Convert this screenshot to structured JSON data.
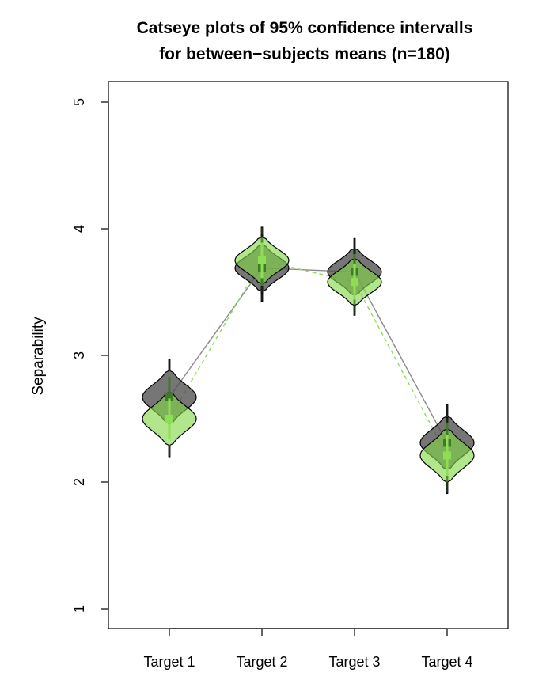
{
  "chart_data": {
    "type": "catseye",
    "title": [
      "Catseye plots of 95% confidence intervalls",
      "for between−subjects means (n=180)"
    ],
    "xlabel": "",
    "ylabel": "Separability",
    "categories": [
      "Target 1",
      "Target 2",
      "Target 3",
      "Target 4"
    ],
    "ylim": [
      1,
      5
    ],
    "yticks": [
      "1",
      "2",
      "3",
      "4",
      "5"
    ],
    "grid": false,
    "legend": "none",
    "series": [
      {
        "color": "#555555",
        "line_style": "solid",
        "means": [
          2.67,
          3.69,
          3.66,
          2.31
        ],
        "ci_half_width": [
          0.16,
          0.14,
          0.14,
          0.16
        ]
      },
      {
        "color": "#8ede55",
        "line_style": "dashed",
        "means": [
          2.5,
          3.75,
          3.58,
          2.21
        ],
        "ci_half_width": [
          0.16,
          0.14,
          0.14,
          0.16
        ]
      }
    ]
  }
}
